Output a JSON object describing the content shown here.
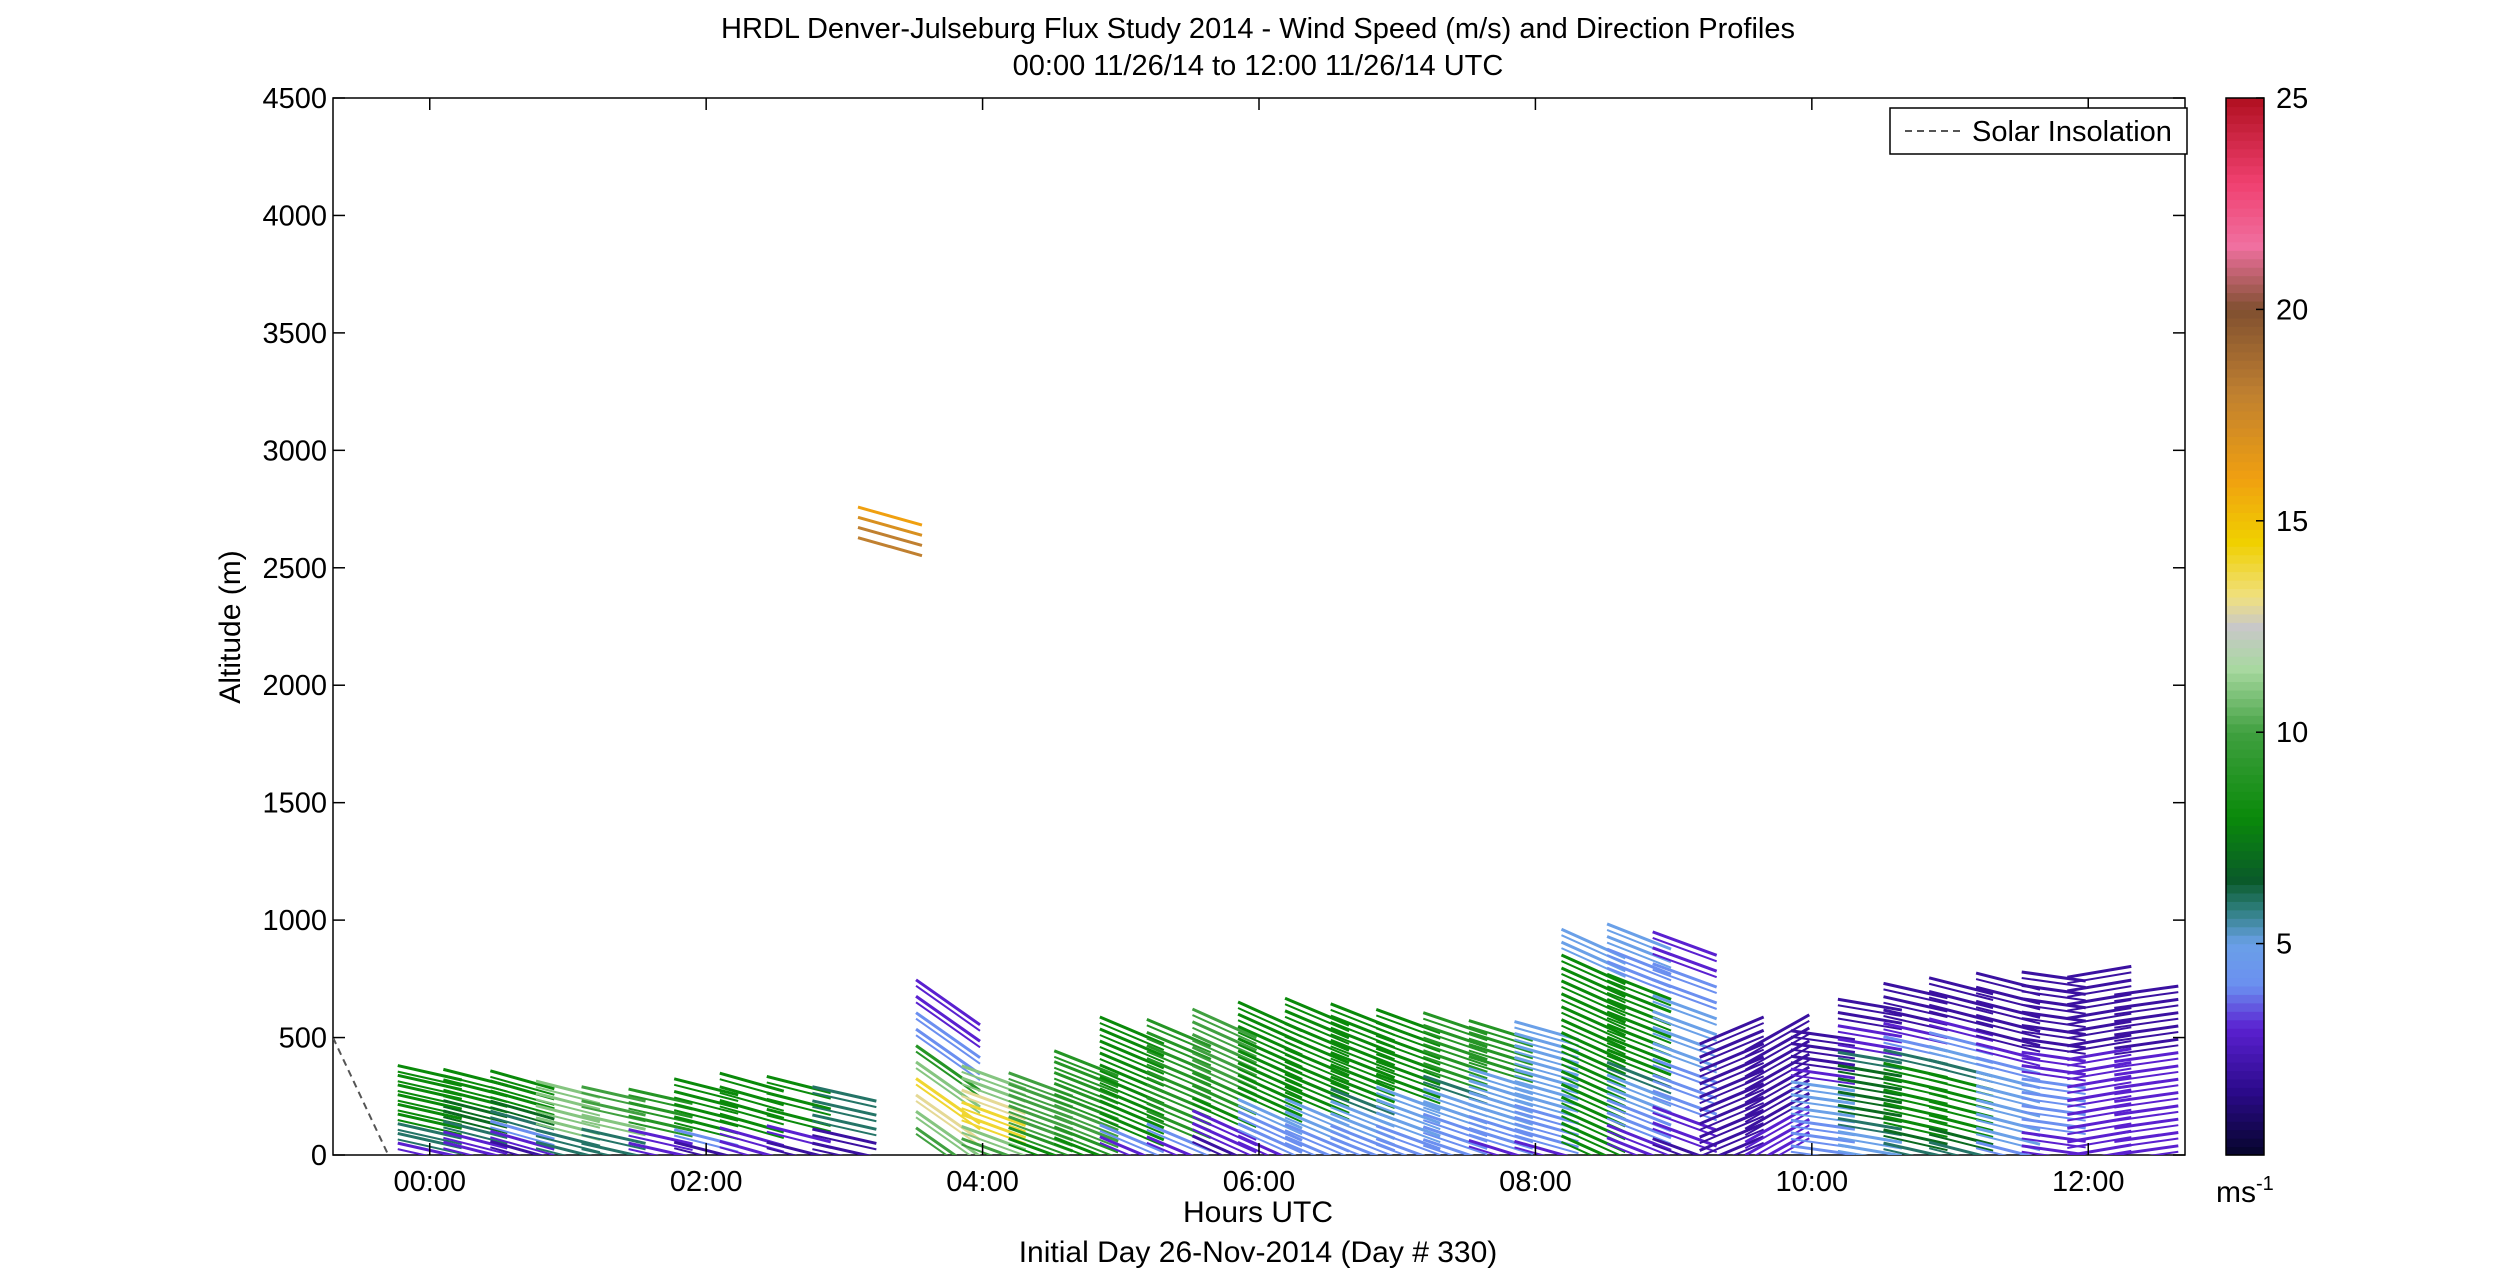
{
  "chart_data": {
    "type": "wind-barb-profile",
    "title_line1": "HRDL Denver-Julseburg Flux Study 2014 - Wind Speed (m/s) and Direction Profiles",
    "title_line2": "00:00 11/26/14 to 12:00 11/26/14  UTC",
    "xlabel": "Hours UTC",
    "xlabel_sub": "Initial Day 26-Nov-2014 (Day # 330)",
    "ylabel": "Altitude (m)",
    "xlim": [
      -0.7,
      12.7
    ],
    "ylim": [
      0,
      4500
    ],
    "x_ticks": [
      {
        "value": 0,
        "label": "00:00"
      },
      {
        "value": 2,
        "label": "02:00"
      },
      {
        "value": 4,
        "label": "04:00"
      },
      {
        "value": 6,
        "label": "06:00"
      },
      {
        "value": 8,
        "label": "08:00"
      },
      {
        "value": 10,
        "label": "10:00"
      },
      {
        "value": 12,
        "label": "12:00"
      }
    ],
    "y_ticks": [
      0,
      500,
      1000,
      1500,
      2000,
      2500,
      3000,
      3500,
      4000,
      4500
    ],
    "legend": {
      "label": "Solar Insolation",
      "placement": "top-right",
      "style": "dashed"
    },
    "colorbar": {
      "min": 0,
      "max": 25,
      "ticks": [
        5,
        10,
        15,
        20,
        25
      ],
      "unit_label": "ms",
      "unit_exponent": "-1",
      "stops": [
        {
          "v": 0,
          "c": "#05052a"
        },
        {
          "v": 1.5,
          "c": "#2b0a8a"
        },
        {
          "v": 3,
          "c": "#5a20d0"
        },
        {
          "v": 4,
          "c": "#6b8ff0"
        },
        {
          "v": 5,
          "c": "#6aa0e8"
        },
        {
          "v": 5.8,
          "c": "#2f7f7f"
        },
        {
          "v": 6.5,
          "c": "#0a5a2a"
        },
        {
          "v": 8,
          "c": "#0a8a0a"
        },
        {
          "v": 10,
          "c": "#40a040"
        },
        {
          "v": 11.5,
          "c": "#a8d8a0"
        },
        {
          "v": 12.5,
          "c": "#c8c8c8"
        },
        {
          "v": 13.2,
          "c": "#f0e080"
        },
        {
          "v": 14.5,
          "c": "#f0d000"
        },
        {
          "v": 16,
          "c": "#f0a010"
        },
        {
          "v": 18,
          "c": "#c08030"
        },
        {
          "v": 20,
          "c": "#805030"
        },
        {
          "v": 21.5,
          "c": "#f070a0"
        },
        {
          "v": 23,
          "c": "#f04070"
        },
        {
          "v": 25,
          "c": "#b01020"
        }
      ]
    },
    "solar_insolation": {
      "x": [
        -0.7,
        -0.3
      ],
      "y": [
        500,
        0
      ]
    },
    "profiles": [
      {
        "t": 0.0,
        "top": 350,
        "speed": [
          3,
          6,
          6,
          8,
          8,
          8,
          8,
          8,
          8
        ],
        "tilt": 0.8
      },
      {
        "t": 0.33,
        "top": 330,
        "speed": [
          3,
          3,
          6,
          7,
          7,
          8,
          8,
          8
        ],
        "tilt": 0.9
      },
      {
        "t": 0.67,
        "top": 320,
        "speed": [
          2,
          3,
          4,
          6,
          7,
          8,
          8,
          8
        ],
        "tilt": 1.0
      },
      {
        "t": 1.0,
        "top": 280,
        "speed": [
          6,
          6,
          11,
          11,
          11,
          11
        ],
        "tilt": 0.9
      },
      {
        "t": 1.33,
        "top": 260,
        "speed": [
          6,
          6,
          11,
          10,
          10
        ],
        "tilt": 0.8
      },
      {
        "t": 1.67,
        "top": 250,
        "speed": [
          3,
          3,
          9,
          9,
          9
        ],
        "tilt": 0.8
      },
      {
        "t": 2.0,
        "top": 290,
        "speed": [
          2,
          4,
          8,
          8,
          8,
          8
        ],
        "tilt": 0.9
      },
      {
        "t": 2.33,
        "top": 310,
        "speed": [
          3,
          3,
          8,
          8,
          8,
          8
        ],
        "tilt": 1.0
      },
      {
        "t": 2.67,
        "top": 300,
        "speed": [
          2,
          3,
          8,
          8,
          8
        ],
        "tilt": 0.9
      },
      {
        "t": 3.0,
        "top": 260,
        "speed": [
          2,
          2,
          6,
          6,
          6
        ],
        "tilt": 0.8
      },
      {
        "t": 3.33,
        "top": 2720,
        "speed": [
          18,
          18,
          17,
          16
        ],
        "tilt": 1.0,
        "only_top": true
      },
      {
        "t": 3.75,
        "top": 650,
        "speed": [
          10,
          11,
          13,
          14,
          11,
          9,
          4,
          4,
          3,
          3
        ],
        "tilt": 2.5
      },
      {
        "t": 4.08,
        "top": 330,
        "speed": [
          10,
          11,
          14,
          14,
          13,
          11,
          11
        ],
        "tilt": 1.3
      },
      {
        "t": 4.42,
        "top": 300,
        "speed": [
          8,
          9,
          10,
          10,
          10,
          10,
          10
        ],
        "tilt": 1.3
      },
      {
        "t": 4.75,
        "top": 390,
        "speed": [
          8,
          9,
          10,
          10,
          9,
          9,
          9,
          9,
          9
        ],
        "tilt": 1.4
      },
      {
        "t": 5.08,
        "top": 530,
        "speed": [
          3,
          4,
          8,
          8,
          8,
          8,
          8,
          8,
          8,
          8,
          8
        ],
        "tilt": 1.5
      },
      {
        "t": 5.42,
        "top": 520,
        "speed": [
          3,
          4,
          9,
          9,
          9,
          9,
          9,
          9,
          9,
          9
        ],
        "tilt": 1.5
      },
      {
        "t": 5.75,
        "top": 560,
        "speed": [
          2,
          3,
          3,
          8,
          9,
          9,
          10,
          10,
          10,
          10,
          10
        ],
        "tilt": 1.6
      },
      {
        "t": 6.08,
        "top": 590,
        "speed": [
          3,
          4,
          4,
          5,
          8,
          8,
          8,
          8,
          8,
          8,
          8,
          8
        ],
        "tilt": 1.6
      },
      {
        "t": 6.42,
        "top": 610,
        "speed": [
          4,
          4,
          5,
          5,
          8,
          8,
          8,
          8,
          8,
          8,
          8,
          8
        ],
        "tilt": 1.5
      },
      {
        "t": 6.75,
        "top": 590,
        "speed": [
          4,
          4,
          5,
          5,
          6,
          8,
          8,
          8,
          8,
          8,
          8,
          8
        ],
        "tilt": 1.4
      },
      {
        "t": 7.08,
        "top": 570,
        "speed": [
          4,
          4,
          5,
          5,
          5,
          8,
          8,
          8,
          8,
          8,
          8
        ],
        "tilt": 1.3
      },
      {
        "t": 7.42,
        "top": 560,
        "speed": [
          4,
          4,
          4,
          5,
          5,
          6,
          9,
          9,
          9,
          9,
          9
        ],
        "tilt": 1.2
      },
      {
        "t": 7.75,
        "top": 530,
        "speed": [
          3,
          4,
          4,
          5,
          5,
          5,
          5,
          9,
          9,
          9,
          9
        ],
        "tilt": 1.1
      },
      {
        "t": 8.08,
        "top": 530,
        "speed": [
          3,
          4,
          4,
          4,
          5,
          5,
          5,
          5,
          5,
          5,
          5
        ],
        "tilt": 1.0
      },
      {
        "t": 8.42,
        "top": 900,
        "speed": [
          8,
          8,
          8,
          8,
          8,
          8,
          8,
          8,
          8,
          8,
          8,
          8,
          8,
          8,
          8,
          5,
          5
        ],
        "tilt": 1.6
      },
      {
        "t": 8.75,
        "top": 930,
        "speed": [
          3,
          3,
          4,
          4,
          5,
          5,
          6,
          8,
          8,
          8,
          8,
          8,
          8,
          8,
          4,
          4,
          5,
          5
        ],
        "tilt": 1.4
      },
      {
        "t": 9.08,
        "top": 900,
        "speed": [
          2,
          3,
          3,
          4,
          4,
          4,
          5,
          5,
          5,
          5,
          4,
          4,
          3,
          3
        ],
        "tilt": 1.3
      },
      {
        "t": 9.42,
        "top": 530,
        "speed": [
          2,
          2,
          2,
          2,
          2,
          2,
          2,
          2,
          2,
          2
        ],
        "tilt": -1.5
      },
      {
        "t": 9.75,
        "top": 520,
        "speed": [
          3,
          3,
          3,
          2,
          2,
          2,
          2,
          2,
          2,
          2
        ],
        "tilt": -2.0
      },
      {
        "t": 10.08,
        "top": 510,
        "speed": [
          4,
          4,
          4,
          5,
          5,
          5,
          3,
          2,
          2,
          2
        ],
        "tilt": 0.5
      },
      {
        "t": 10.42,
        "top": 640,
        "speed": [
          5,
          5,
          6,
          7,
          7,
          7,
          7,
          6,
          3,
          3,
          2,
          2
        ],
        "tilt": 0.6
      },
      {
        "t": 10.75,
        "top": 700,
        "speed": [
          6,
          7,
          8,
          8,
          8,
          8,
          8,
          6,
          4,
          3,
          2,
          2,
          2
        ],
        "tilt": 0.8
      },
      {
        "t": 11.08,
        "top": 720,
        "speed": [
          6,
          7,
          8,
          8,
          8,
          8,
          6,
          5,
          4,
          3,
          2,
          2,
          2
        ],
        "tilt": 0.9
      },
      {
        "t": 11.42,
        "top": 740,
        "speed": [
          4,
          5,
          5,
          5,
          5,
          5,
          4,
          3,
          2,
          2,
          2,
          2,
          2
        ],
        "tilt": 0.9
      },
      {
        "t": 11.75,
        "top": 760,
        "speed": [
          3,
          3,
          4,
          4,
          4,
          4,
          3,
          3,
          2,
          2,
          2,
          2,
          2,
          2
        ],
        "tilt": 0.5
      },
      {
        "t": 12.08,
        "top": 780,
        "speed": [
          3,
          3,
          3,
          3,
          3,
          3,
          3,
          3,
          2,
          2,
          2,
          2,
          2,
          2
        ],
        "tilt": -0.6
      },
      {
        "t": 12.42,
        "top": 700,
        "speed": [
          3,
          3,
          3,
          3,
          3,
          3,
          3,
          3,
          2,
          2,
          2,
          2,
          2
        ],
        "tilt": -0.5
      }
    ]
  }
}
